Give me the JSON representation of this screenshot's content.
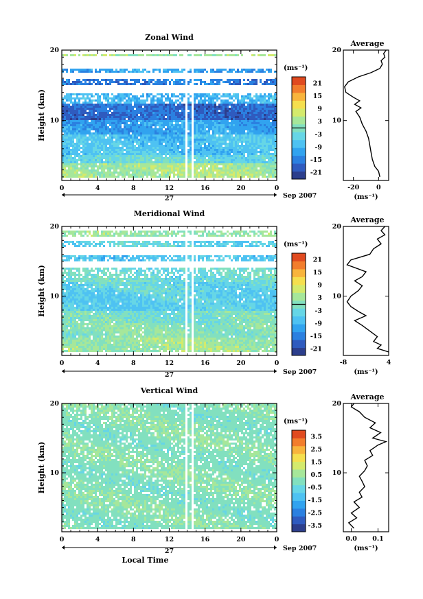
{
  "chart_data": [
    {
      "type": "heatmap",
      "title": "Zonal Wind",
      "ylabel": "Height (km)",
      "xlabel": "",
      "x_ticks": [
        "0",
        "4",
        "8",
        "12",
        "16",
        "20",
        "0"
      ],
      "y_ticks": [
        "20",
        "10"
      ],
      "date_day": "27",
      "date_label": "Sep 2007",
      "xlim": [
        0,
        24
      ],
      "ylim": [
        1.5,
        20
      ],
      "colorbar": {
        "unit": "(ms⁻¹)",
        "ticks": [
          "21",
          "15",
          "9",
          "3",
          "-3",
          "-9",
          "-15",
          "-21"
        ],
        "range": [
          -24,
          24
        ]
      },
      "layers": [
        {
          "from": 2,
          "to": 4,
          "value": 4
        },
        {
          "from": 4,
          "to": 5,
          "value": -3
        },
        {
          "from": 5,
          "to": 8,
          "value": -7
        },
        {
          "from": 8,
          "to": 10,
          "value": -11
        },
        {
          "from": 10,
          "to": 12.5,
          "value": -17
        },
        {
          "from": 12.5,
          "to": 14,
          "value": -9
        },
        {
          "from": 15,
          "to": 16,
          "value": -15
        },
        {
          "from": 16.8,
          "to": 17.5,
          "value": -11
        },
        {
          "from": 19,
          "to": 19.5,
          "value": 3
        }
      ],
      "average": {
        "title": "Average",
        "xlabel": "(ms⁻¹)",
        "x_ticks": [
          "-20",
          "0"
        ],
        "xlim": [
          -28,
          8
        ],
        "y_ticks": [
          "20",
          "10"
        ],
        "profile": [
          {
            "h": 2.0,
            "v": 1
          },
          {
            "h": 2.8,
            "v": 0
          },
          {
            "h": 3.5,
            "v": -3
          },
          {
            "h": 4.5,
            "v": -5
          },
          {
            "h": 5.5,
            "v": -6
          },
          {
            "h": 6.5,
            "v": -7
          },
          {
            "h": 7.5,
            "v": -8
          },
          {
            "h": 8.5,
            "v": -10
          },
          {
            "h": 9.5,
            "v": -13
          },
          {
            "h": 10.5,
            "v": -15
          },
          {
            "h": 11.3,
            "v": -18
          },
          {
            "h": 11.8,
            "v": -14
          },
          {
            "h": 12.3,
            "v": -19
          },
          {
            "h": 12.8,
            "v": -15
          },
          {
            "h": 13.3,
            "v": -20
          },
          {
            "h": 14.0,
            "v": -26
          },
          {
            "h": 14.8,
            "v": -27
          },
          {
            "h": 15.5,
            "v": -24
          },
          {
            "h": 16.2,
            "v": -16
          },
          {
            "h": 16.8,
            "v": -6
          },
          {
            "h": 17.4,
            "v": 1
          },
          {
            "h": 18.0,
            "v": 3
          },
          {
            "h": 18.5,
            "v": 2
          },
          {
            "h": 19.0,
            "v": 5
          },
          {
            "h": 19.5,
            "v": 4
          },
          {
            "h": 20.0,
            "v": 6
          }
        ]
      }
    },
    {
      "type": "heatmap",
      "title": "Meridional Wind",
      "ylabel": "Height (km)",
      "xlabel": "",
      "x_ticks": [
        "0",
        "4",
        "8",
        "12",
        "16",
        "20",
        "0"
      ],
      "y_ticks": [
        "20",
        "10"
      ],
      "date_day": "27",
      "date_label": "Sep 2007",
      "xlim": [
        0,
        24
      ],
      "ylim": [
        1.5,
        20
      ],
      "colorbar": {
        "unit": "(ms⁻¹)",
        "ticks": [
          "21",
          "15",
          "9",
          "3",
          "-3",
          "-9",
          "-15",
          "-21"
        ],
        "range": [
          -24,
          24
        ]
      },
      "layers": [
        {
          "from": 2,
          "to": 4,
          "value": 3
        },
        {
          "from": 4,
          "to": 6,
          "value": 1
        },
        {
          "from": 6,
          "to": 8,
          "value": -1
        },
        {
          "from": 8,
          "to": 10.5,
          "value": -5
        },
        {
          "from": 10.5,
          "to": 12,
          "value": -4
        },
        {
          "from": 12,
          "to": 14,
          "value": -2
        },
        {
          "from": 15,
          "to": 16,
          "value": -6
        },
        {
          "from": 17,
          "to": 18,
          "value": -4
        },
        {
          "from": 18.5,
          "to": 19.5,
          "value": 2
        }
      ],
      "average": {
        "title": "Average",
        "xlabel": "(ms⁻¹)",
        "x_ticks": [
          "-8",
          "4"
        ],
        "xlim": [
          -8,
          4
        ],
        "y_ticks": [
          "20",
          "10"
        ],
        "profile": [
          {
            "h": 2.0,
            "v": 4
          },
          {
            "h": 2.5,
            "v": 1
          },
          {
            "h": 3.0,
            "v": 2
          },
          {
            "h": 3.5,
            "v": 0
          },
          {
            "h": 4.2,
            "v": 1
          },
          {
            "h": 5.0,
            "v": -1
          },
          {
            "h": 5.8,
            "v": -3
          },
          {
            "h": 6.5,
            "v": -5
          },
          {
            "h": 7.2,
            "v": -2
          },
          {
            "h": 7.8,
            "v": -4
          },
          {
            "h": 8.5,
            "v": -6
          },
          {
            "h": 9.2,
            "v": -7
          },
          {
            "h": 10.0,
            "v": -6
          },
          {
            "h": 10.8,
            "v": -4
          },
          {
            "h": 11.5,
            "v": -3
          },
          {
            "h": 12.2,
            "v": -5
          },
          {
            "h": 12.8,
            "v": -3
          },
          {
            "h": 13.5,
            "v": -2
          },
          {
            "h": 14.5,
            "v": -7
          },
          {
            "h": 15.2,
            "v": -6
          },
          {
            "h": 16.0,
            "v": -1
          },
          {
            "h": 16.8,
            "v": 0
          },
          {
            "h": 17.5,
            "v": 2
          },
          {
            "h": 18.2,
            "v": 1
          },
          {
            "h": 18.8,
            "v": 3
          },
          {
            "h": 19.4,
            "v": 2
          },
          {
            "h": 20.0,
            "v": 3
          }
        ]
      }
    },
    {
      "type": "heatmap",
      "title": "Vertical Wind",
      "ylabel": "Height (km)",
      "xlabel": "Local Time",
      "x_ticks": [
        "0",
        "4",
        "8",
        "12",
        "16",
        "20",
        "0"
      ],
      "y_ticks": [
        "20",
        "10"
      ],
      "date_day": "27",
      "date_label": "Sep 2007",
      "xlim": [
        0,
        24
      ],
      "ylim": [
        1.5,
        20
      ],
      "colorbar": {
        "unit": "(ms⁻¹)",
        "ticks": [
          "3.5",
          "2.5",
          "1.5",
          "0.5",
          "-0.5",
          "-1.5",
          "-2.5",
          "-3.5"
        ],
        "range": [
          -4,
          4
        ]
      },
      "layers": [
        {
          "from": 2,
          "to": 20,
          "value": 0.1
        }
      ],
      "average": {
        "title": "Average",
        "xlabel": "(ms⁻¹)",
        "x_ticks": [
          "0.0",
          "0.1"
        ],
        "xlim": [
          -0.03,
          0.14
        ],
        "y_ticks": [
          "20",
          "10"
        ],
        "profile": [
          {
            "h": 2.0,
            "v": 0.01
          },
          {
            "h": 2.8,
            "v": -0.01
          },
          {
            "h": 3.5,
            "v": 0.02
          },
          {
            "h": 4.2,
            "v": 0.0
          },
          {
            "h": 5.0,
            "v": 0.03
          },
          {
            "h": 5.8,
            "v": 0.01
          },
          {
            "h": 6.5,
            "v": 0.04
          },
          {
            "h": 7.2,
            "v": 0.03
          },
          {
            "h": 8.0,
            "v": 0.05
          },
          {
            "h": 8.8,
            "v": 0.04
          },
          {
            "h": 9.5,
            "v": 0.03
          },
          {
            "h": 10.3,
            "v": 0.05
          },
          {
            "h": 11.0,
            "v": 0.06
          },
          {
            "h": 11.8,
            "v": 0.05
          },
          {
            "h": 12.5,
            "v": 0.08
          },
          {
            "h": 13.2,
            "v": 0.07
          },
          {
            "h": 14.0,
            "v": 0.1
          },
          {
            "h": 14.5,
            "v": 0.13
          },
          {
            "h": 15.0,
            "v": 0.08
          },
          {
            "h": 15.8,
            "v": 0.11
          },
          {
            "h": 16.5,
            "v": 0.07
          },
          {
            "h": 17.2,
            "v": 0.09
          },
          {
            "h": 18.0,
            "v": 0.05
          },
          {
            "h": 18.8,
            "v": 0.03
          },
          {
            "h": 19.5,
            "v": 0.0
          },
          {
            "h": 20.0,
            "v": 0.01
          }
        ]
      }
    }
  ]
}
